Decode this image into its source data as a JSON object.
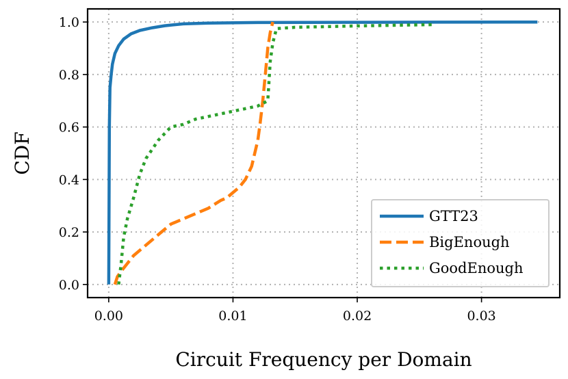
{
  "chart_data": {
    "type": "line",
    "title": "",
    "xlabel": "Circuit Frequency per Domain",
    "ylabel": "CDF",
    "xlim": [
      -0.0017,
      0.0363
    ],
    "ylim": [
      -0.05,
      1.05
    ],
    "xticks": [
      0.0,
      0.01,
      0.02,
      0.03
    ],
    "xtick_labels": [
      "0.00",
      "0.01",
      "0.02",
      "0.03"
    ],
    "yticks": [
      0.0,
      0.2,
      0.4,
      0.6,
      0.8,
      1.0
    ],
    "ytick_labels": [
      "0.0",
      "0.2",
      "0.4",
      "0.6",
      "0.8",
      "1.0"
    ],
    "grid": true,
    "legend_position": "bottom-right",
    "series": [
      {
        "name": "GTT23",
        "style": "solid",
        "color": "#1f77b4",
        "x": [
          0.0,
          5e-05,
          0.0001,
          0.0002,
          0.0003,
          0.0005,
          0.0008,
          0.0012,
          0.0018,
          0.0025,
          0.0035,
          0.0045,
          0.006,
          0.008,
          0.012,
          0.02,
          0.0345
        ],
        "y": [
          0.0,
          0.6,
          0.75,
          0.8,
          0.84,
          0.88,
          0.91,
          0.935,
          0.955,
          0.968,
          0.978,
          0.986,
          0.993,
          0.996,
          0.998,
          0.999,
          1.0
        ]
      },
      {
        "name": "BigEnough",
        "style": "dashed",
        "color": "#ff7f0e",
        "x": [
          0.0005,
          0.0007,
          0.001,
          0.0015,
          0.002,
          0.003,
          0.004,
          0.005,
          0.006,
          0.007,
          0.008,
          0.009,
          0.0095,
          0.01,
          0.0105,
          0.011,
          0.0115,
          0.012,
          0.0122,
          0.0124,
          0.0126,
          0.0128,
          0.013,
          0.0132
        ],
        "y": [
          0.0,
          0.03,
          0.05,
          0.08,
          0.11,
          0.15,
          0.19,
          0.23,
          0.25,
          0.27,
          0.29,
          0.32,
          0.33,
          0.35,
          0.37,
          0.4,
          0.45,
          0.55,
          0.62,
          0.7,
          0.8,
          0.9,
          0.96,
          1.0
        ]
      },
      {
        "name": "GoodEnough",
        "style": "dotted",
        "color": "#2ca02c",
        "x": [
          0.0008,
          0.001,
          0.0012,
          0.0015,
          0.002,
          0.0025,
          0.003,
          0.004,
          0.005,
          0.006,
          0.007,
          0.008,
          0.009,
          0.01,
          0.011,
          0.012,
          0.0128,
          0.013,
          0.0132,
          0.0135,
          0.015,
          0.02,
          0.026
        ],
        "y": [
          0.0,
          0.08,
          0.18,
          0.25,
          0.33,
          0.42,
          0.48,
          0.55,
          0.6,
          0.61,
          0.63,
          0.64,
          0.65,
          0.66,
          0.67,
          0.68,
          0.7,
          0.85,
          0.92,
          0.975,
          0.98,
          0.985,
          0.99
        ]
      }
    ]
  }
}
